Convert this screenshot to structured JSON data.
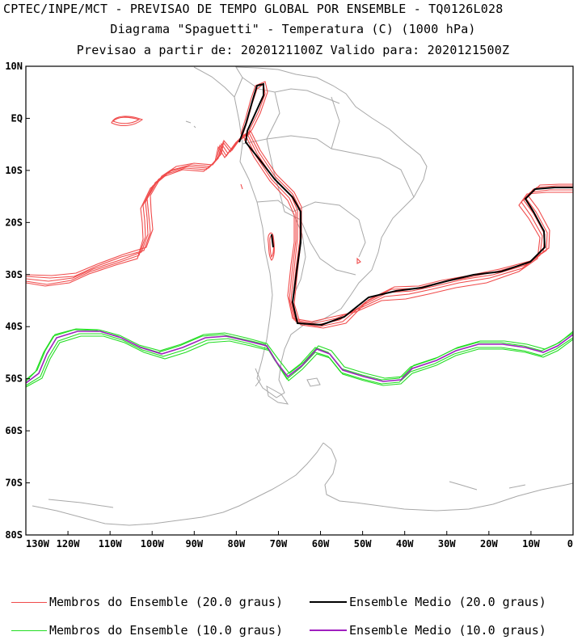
{
  "titles": {
    "line1": "CPTEC/INPE/MCT - PREVISAO DE TEMPO GLOBAL POR ENSEMBLE - TQ0126L028",
    "line2": "Diagrama \"Spaguetti\" - Temperatura (C) (1000 hPa)",
    "line3": "Previsao a partir de: 2020121100Z  Valido para: 2020121500Z"
  },
  "map": {
    "lon_range": [
      -130,
      0
    ],
    "lat_range": [
      -80,
      10
    ],
    "lat_ticks": [
      "10N",
      "EQ",
      "10S",
      "20S",
      "30S",
      "40S",
      "50S",
      "60S",
      "70S",
      "80S"
    ],
    "lon_ticks": [
      "130W",
      "120W",
      "110W",
      "100W",
      "90W",
      "80W",
      "70W",
      "60W",
      "50W",
      "40W",
      "30W",
      "20W",
      "10W",
      "0"
    ]
  },
  "legend": {
    "members20": "Membros do Ensemble (20.0 graus)",
    "mean20": "Ensemble Medio (20.0 graus)",
    "members10": "Membros do Ensemble (10.0 graus)",
    "mean10": "Ensemble Medio (10.0 graus)"
  },
  "colors": {
    "members20": "#f04a4a",
    "mean20": "#000000",
    "members10": "#22dd22",
    "mean10": "#a020c0",
    "coast": "#a8a8a8"
  }
}
